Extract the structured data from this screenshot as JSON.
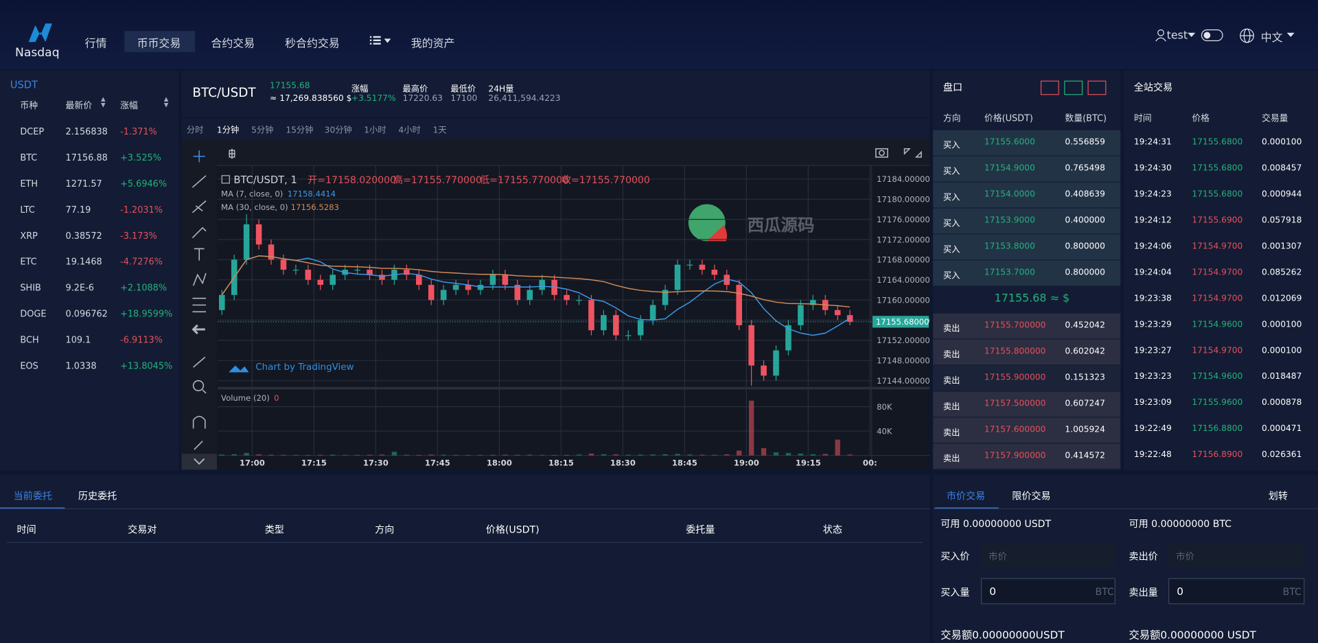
{
  "header": {
    "logo": "Nasdaq",
    "nav": [
      "行情",
      "币币交易",
      "合约交易",
      "秒合约交易",
      "我的资产"
    ],
    "user": "test",
    "language": "中文"
  },
  "market": {
    "quote": "USDT",
    "columns": [
      "币种",
      "最新价",
      "涨幅"
    ],
    "rows": [
      [
        "DCEP",
        "2.156838",
        "-1.371%"
      ],
      [
        "BTC",
        "17156.88",
        "+3.525%"
      ],
      [
        "ETH",
        "1271.57",
        "+5.6946%"
      ],
      [
        "LTC",
        "77.19",
        "-1.2031%"
      ],
      [
        "XRP",
        "0.38572",
        "-3.173%"
      ],
      [
        "ETC",
        "19.1468",
        "-4.7276%"
      ],
      [
        "SHIB",
        "9.2E-6",
        "+2.1088%"
      ],
      [
        "DOGE",
        "0.096762",
        "+18.9599%"
      ],
      [
        "BCH",
        "109.1",
        "-6.9113%"
      ],
      [
        "EOS",
        "1.0338",
        "+13.8045%"
      ]
    ]
  },
  "ticker": {
    "pair": "BTC/USDT",
    "price": "17155.68",
    "approx": "≈ 17,269.838560 $",
    "stats": [
      {
        "label": "涨幅",
        "value": "+3.5177%"
      },
      {
        "label": "最高价",
        "value": "17220.63"
      },
      {
        "label": "最低价",
        "value": "17100"
      },
      {
        "label": "24H量",
        "value": "26,411,594.4223"
      }
    ]
  },
  "intervals": [
    "分时",
    "1分钟",
    "5分钟",
    "15分钟",
    "30分钟",
    "1小时",
    "4小时",
    "1天"
  ],
  "kline": {
    "symbol": "BTC/USDT, 1",
    "legend": [
      "开=17158.020000",
      "高=17155.770000",
      "低=17155.770000",
      "收=17155.770000"
    ],
    "ma": [
      {
        "name": "MA (7, close, 0)",
        "value": "17158.4414",
        "color": "#3d9ae8"
      },
      {
        "name": "MA (30, close, 0)",
        "value": "17156.5283",
        "color": "#d08b55"
      }
    ],
    "watermark": "西瓜源码",
    "attribution": "Chart by TradingView",
    "volume_label": "Volume (20)",
    "volume_value": "0",
    "last_label": "17155.680000",
    "up_color": "#26a69a",
    "down_color": "#ef5360",
    "ylim": [
      17142,
      17186
    ],
    "yticks": [
      {
        "value": 17144,
        "label": "17144.000000"
      },
      {
        "value": 17148,
        "label": "17148.000000"
      },
      {
        "value": 17152,
        "label": "17152.000000"
      },
      {
        "value": 17156,
        "label": "17156.000000"
      },
      {
        "value": 17160,
        "label": "17160.000000"
      },
      {
        "value": 17164,
        "label": "17164.000000"
      },
      {
        "value": 17168,
        "label": "17168.000000"
      },
      {
        "value": 17172,
        "label": "17172.000000"
      },
      {
        "value": 17176,
        "label": "17176.000000"
      },
      {
        "value": 17180,
        "label": "17180.000000"
      },
      {
        "value": 17184,
        "label": "17184.000000"
      }
    ],
    "vol_ylim": [
      0,
      100000
    ],
    "vol_yticks": [
      {
        "value": 40000,
        "label": "40K"
      },
      {
        "value": 80000,
        "label": "80K"
      }
    ],
    "times": [
      "17:00",
      "17:15",
      "17:30",
      "17:45",
      "18:00",
      "18:15",
      "18:30",
      "18:45",
      "19:00",
      "19:15",
      "00:"
    ],
    "open": [
      17158,
      17161,
      17168,
      17175,
      17171,
      17168,
      17166,
      17166,
      17164,
      17163,
      17165,
      17166,
      17166,
      17165,
      17164,
      17166,
      17165,
      17163,
      17160,
      17162,
      17163,
      17162,
      17163,
      17165,
      17163,
      17160,
      17162,
      17164,
      17161,
      17160,
      17160,
      17154,
      17157,
      17153,
      17153,
      17156,
      17159,
      17162,
      17167,
      17167,
      17166,
      17165,
      17163,
      17155,
      17147,
      17145,
      17150,
      17155,
      17159,
      17160,
      17158,
      17157
    ],
    "high": [
      17162,
      17169,
      17177,
      17176,
      17172,
      17169,
      17167,
      17167,
      17165,
      17166,
      17167,
      17167,
      17167,
      17166,
      17167,
      17167,
      17166,
      17164,
      17163,
      17164,
      17164,
      17164,
      17166,
      17166,
      17164,
      17163,
      17165,
      17165,
      17162,
      17161,
      17161,
      17158,
      17158,
      17154,
      17157,
      17160,
      17163,
      17168,
      17168,
      17168,
      17167,
      17166,
      17164,
      17156,
      17148,
      17151,
      17156,
      17160,
      17161,
      17161,
      17159,
      17158
    ],
    "low": [
      17157,
      17160,
      17167,
      17170,
      17167,
      17165,
      17165,
      17163,
      17162,
      17162,
      17164,
      17165,
      17164,
      17163,
      17163,
      17164,
      17162,
      17159,
      17159,
      17161,
      17161,
      17161,
      17162,
      17162,
      17159,
      17159,
      17161,
      17160,
      17159,
      17159,
      17153,
      17153,
      17152,
      17152,
      17152,
      17155,
      17158,
      17161,
      17166,
      17165,
      17164,
      17162,
      17154,
      17143,
      17144,
      17144,
      17149,
      17154,
      17158,
      17157,
      17156,
      17155
    ],
    "close": [
      17161,
      17168,
      17175,
      17171,
      17168,
      17166,
      17166,
      17164,
      17163,
      17165,
      17166,
      17166,
      17165,
      17164,
      17166,
      17165,
      17163,
      17160,
      17162,
      17163,
      17162,
      17163,
      17165,
      17163,
      17160,
      17162,
      17164,
      17161,
      17160,
      17160,
      17154,
      17157,
      17153,
      17153,
      17156,
      17159,
      17162,
      17167,
      17167,
      17166,
      17165,
      17163,
      17155,
      17147,
      17145,
      17150,
      17155,
      17159,
      17160,
      17158,
      17157,
      17155.68
    ],
    "volume": [
      1500,
      2000,
      4000,
      1800,
      1200,
      1000,
      900,
      800,
      1100,
      1300,
      900,
      1000,
      1200,
      1500,
      6000,
      1100,
      900,
      1500,
      1200,
      1000,
      800,
      900,
      1100,
      1300,
      1000,
      1200,
      900,
      800,
      1000,
      1500,
      3000,
      2000,
      1800,
      1200,
      1400,
      1600,
      2000,
      2500,
      1500,
      1200,
      1000,
      1800,
      8000,
      90000,
      12000,
      5000,
      4000,
      3000,
      2000,
      2500,
      26000,
      1500
    ]
  },
  "orderbook": {
    "title": "盘口",
    "columns": [
      "方向",
      "价格(USDT)",
      "数量(BTC)"
    ],
    "bids": [
      [
        "买入",
        "17155.6000",
        "0.556859"
      ],
      [
        "买入",
        "17154.9000",
        "0.765498"
      ],
      [
        "买入",
        "17154.0000",
        "0.408639"
      ],
      [
        "买入",
        "17153.9000",
        "0.400000"
      ],
      [
        "买入",
        "17153.8000",
        "0.800000"
      ],
      [
        "买入",
        "17153.7000",
        "0.800000"
      ]
    ],
    "mid": "17155.68 ≈ $",
    "asks": [
      [
        "卖出",
        "17155.700000",
        "0.452042"
      ],
      [
        "卖出",
        "17155.800000",
        "0.602042"
      ],
      [
        "卖出",
        "17155.900000",
        "0.151323"
      ],
      [
        "卖出",
        "17157.500000",
        "0.607247"
      ],
      [
        "卖出",
        "17157.600000",
        "1.005924"
      ],
      [
        "卖出",
        "17157.900000",
        "0.414572"
      ]
    ]
  },
  "trades": {
    "title": "全站交易",
    "columns": [
      "时间",
      "价格",
      "交易量"
    ],
    "rows": [
      {
        "time": "19:24:31",
        "price": "17155.6800",
        "volume": "0.000100",
        "color": "#23b27c"
      },
      {
        "time": "19:24:30",
        "price": "17155.6800",
        "volume": "0.008457",
        "color": "#23b27c"
      },
      {
        "time": "19:24:23",
        "price": "17155.6800",
        "volume": "0.000944",
        "color": "#23b27c"
      },
      {
        "time": "19:24:12",
        "price": "17155.6900",
        "volume": "0.057918",
        "color": "#e5505b"
      },
      {
        "time": "19:24:06",
        "price": "17154.9700",
        "volume": "0.001307",
        "color": "#e5505b"
      },
      {
        "time": "19:24:04",
        "price": "17154.9700",
        "volume": "0.085262",
        "color": "#e5505b"
      },
      {
        "time": "19:23:38",
        "price": "17154.9700",
        "volume": "0.012069",
        "color": "#e5505b"
      },
      {
        "time": "19:23:29",
        "price": "17154.9600",
        "volume": "0.000100",
        "color": "#23b27c"
      },
      {
        "time": "19:23:27",
        "price": "17154.9700",
        "volume": "0.000100",
        "color": "#e5505b"
      },
      {
        "time": "19:23:23",
        "price": "17154.9600",
        "volume": "0.018487",
        "color": "#23b27c"
      },
      {
        "time": "19:23:09",
        "price": "17155.9600",
        "volume": "0.000878",
        "color": "#23b27c"
      },
      {
        "time": "19:22:49",
        "price": "17156.8800",
        "volume": "0.000471",
        "color": "#23b27c"
      },
      {
        "time": "19:22:48",
        "price": "17156.8900",
        "volume": "0.026361",
        "color": "#e5505b"
      }
    ]
  },
  "orders": {
    "tabs": [
      "当前委托",
      "历史委托"
    ],
    "columns": [
      "时间",
      "交易对",
      "类型",
      "方向",
      "价格(USDT)",
      "委托量",
      "状态"
    ]
  },
  "form": {
    "tabs": [
      "市价交易",
      "限价交易"
    ],
    "transfer": "划转",
    "buy": {
      "available": "可用 0.00000000 USDT",
      "price_label": "买入价",
      "price_placeholder": "市价",
      "amount_label": "买入量",
      "amount": "0",
      "unit": "BTC",
      "total": "交易额0.00000000USDT"
    },
    "sell": {
      "available": "可用 0.00000000 BTC",
      "price_label": "卖出价",
      "price_placeholder": "市价",
      "amount_label": "卖出量",
      "amount": "0",
      "unit": "BTC",
      "total": "交易额0.00000000 USDT"
    }
  }
}
